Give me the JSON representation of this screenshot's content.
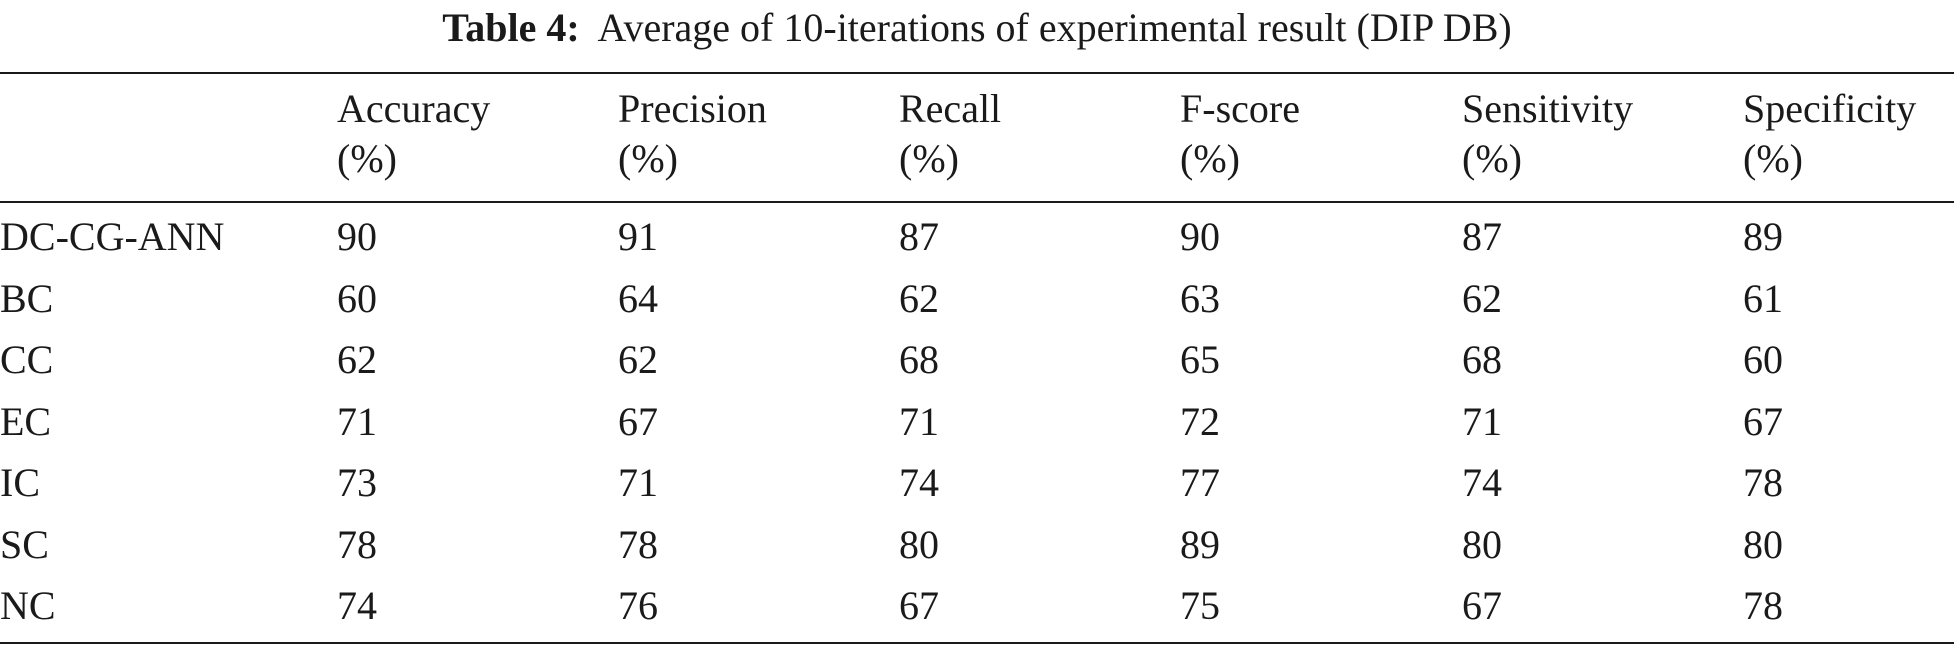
{
  "caption": {
    "label": "Table 4:",
    "text": "Average of 10-iterations of experimental result (DIP DB)"
  },
  "table": {
    "columns": [
      {
        "name": "Accuracy",
        "unit": "(%)"
      },
      {
        "name": "Precision",
        "unit": "(%)"
      },
      {
        "name": "Recall",
        "unit": "(%)"
      },
      {
        "name": "F-score",
        "unit": "(%)"
      },
      {
        "name": "Sensitivity",
        "unit": "(%)"
      },
      {
        "name": "Specificity",
        "unit": "(%)"
      }
    ],
    "rows": [
      {
        "method": "DC-CG-ANN",
        "values": [
          "90",
          "91",
          "87",
          "90",
          "87",
          "89"
        ]
      },
      {
        "method": "BC",
        "values": [
          "60",
          "64",
          "62",
          "63",
          "62",
          "61"
        ]
      },
      {
        "method": "CC",
        "values": [
          "62",
          "62",
          "68",
          "65",
          "68",
          "60"
        ]
      },
      {
        "method": "EC",
        "values": [
          "71",
          "67",
          "71",
          "72",
          "71",
          "67"
        ]
      },
      {
        "method": "IC",
        "values": [
          "73",
          "71",
          "74",
          "77",
          "74",
          "78"
        ]
      },
      {
        "method": "SC",
        "values": [
          "78",
          "78",
          "80",
          "89",
          "80",
          "80"
        ]
      },
      {
        "method": "NC",
        "values": [
          "74",
          "76",
          "67",
          "75",
          "67",
          "78"
        ]
      }
    ]
  }
}
